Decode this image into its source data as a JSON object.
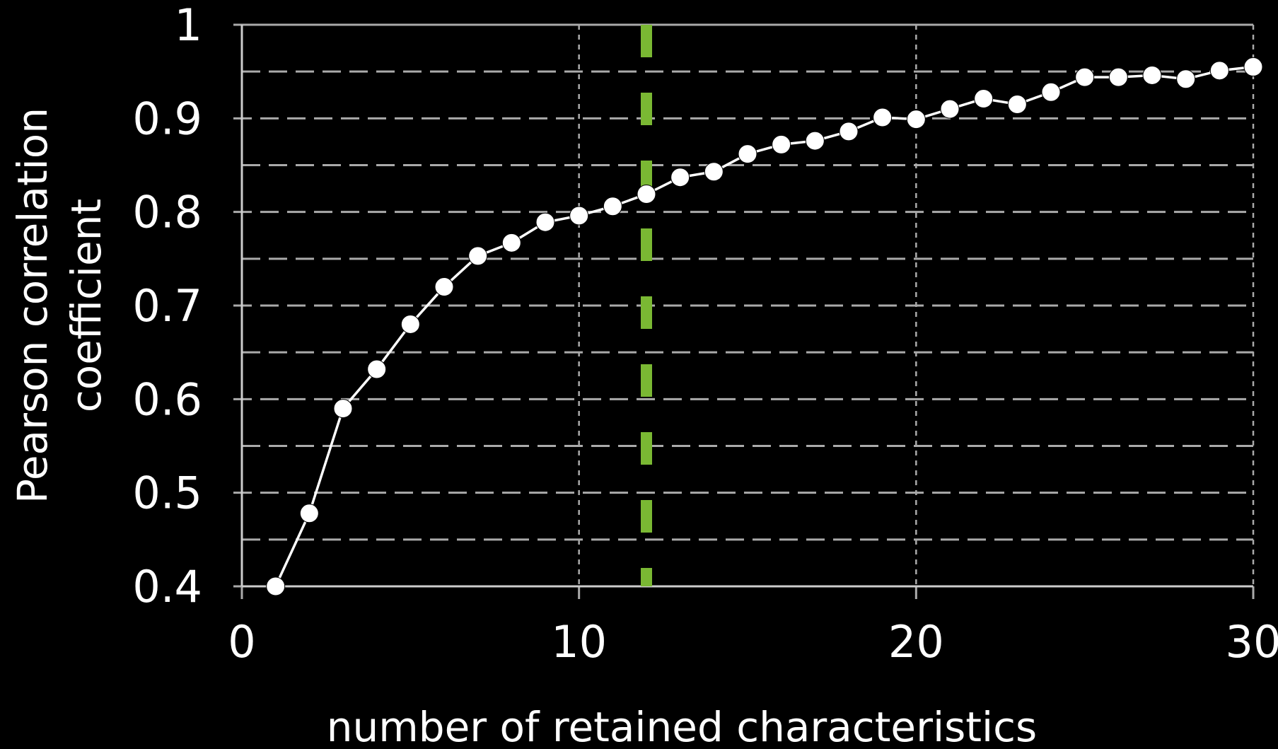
{
  "chart_data": {
    "type": "line",
    "xlabel": "number of retained characteristics",
    "ylabel": [
      "Pearson correlation",
      "coefficient"
    ],
    "x": [
      1,
      2,
      3,
      4,
      5,
      6,
      7,
      8,
      9,
      10,
      11,
      12,
      13,
      14,
      15,
      16,
      17,
      18,
      19,
      20,
      21,
      22,
      23,
      24,
      25,
      26,
      27,
      28,
      29,
      30
    ],
    "series": [
      {
        "color": "#ffffff",
        "values": [
          0.4,
          0.478,
          0.59,
          0.632,
          0.68,
          0.72,
          0.753,
          0.767,
          0.789,
          0.796,
          0.806,
          0.819,
          0.837,
          0.843,
          0.862,
          0.872,
          0.876,
          0.886,
          0.901,
          0.899,
          0.91,
          0.921,
          0.915,
          0.928,
          0.944,
          0.944,
          0.946,
          0.942,
          0.951,
          0.955
        ]
      }
    ],
    "xlim": [
      0,
      30
    ],
    "xticks": [
      0,
      10,
      20,
      30
    ],
    "ylim": [
      0.4,
      1
    ],
    "yticks": [
      0.4,
      0.5,
      0.6,
      0.7,
      0.8,
      0.9,
      1
    ],
    "yminorticks": [
      0.45,
      0.55,
      0.65,
      0.75,
      0.85,
      0.95
    ],
    "grid": true,
    "reference_line": {
      "x": 12,
      "color": "#7ab833"
    }
  }
}
